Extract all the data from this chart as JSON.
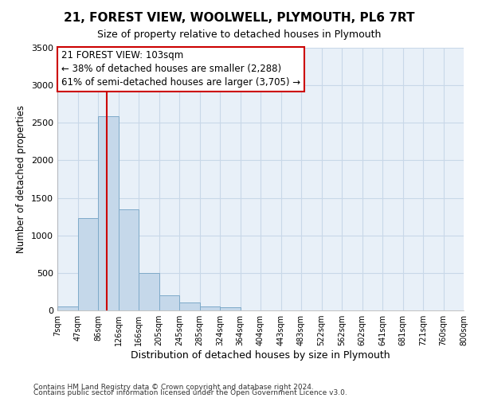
{
  "title": "21, FOREST VIEW, WOOLWELL, PLYMOUTH, PL6 7RT",
  "subtitle": "Size of property relative to detached houses in Plymouth",
  "xlabel": "Distribution of detached houses by size in Plymouth",
  "ylabel": "Number of detached properties",
  "footnote1": "Contains HM Land Registry data © Crown copyright and database right 2024.",
  "footnote2": "Contains public sector information licensed under the Open Government Licence v3.0.",
  "annotation_title": "21 FOREST VIEW: 103sqm",
  "annotation_line1": "← 38% of detached houses are smaller (2,288)",
  "annotation_line2": "61% of semi-detached houses are larger (3,705) →",
  "bar_color": "#c5d8ea",
  "bar_edge_color": "#7eaac9",
  "marker_color": "#cc0000",
  "tick_labels": [
    "7sqm",
    "47sqm",
    "86sqm",
    "126sqm",
    "166sqm",
    "205sqm",
    "245sqm",
    "285sqm",
    "324sqm",
    "364sqm",
    "404sqm",
    "443sqm",
    "483sqm",
    "522sqm",
    "562sqm",
    "602sqm",
    "641sqm",
    "681sqm",
    "721sqm",
    "760sqm",
    "800sqm"
  ],
  "bar_values": [
    55,
    1230,
    2590,
    1350,
    500,
    200,
    110,
    55,
    40,
    0,
    0,
    0,
    0,
    0,
    0,
    0,
    0,
    0,
    0,
    0
  ],
  "ylim": [
    0,
    3500
  ],
  "yticks": [
    0,
    500,
    1000,
    1500,
    2000,
    2500,
    3000,
    3500
  ],
  "red_line_x": 2.42,
  "grid_color": "#c8d8e8",
  "background_color": "#ffffff",
  "plot_bg_color": "#e8f0f8"
}
